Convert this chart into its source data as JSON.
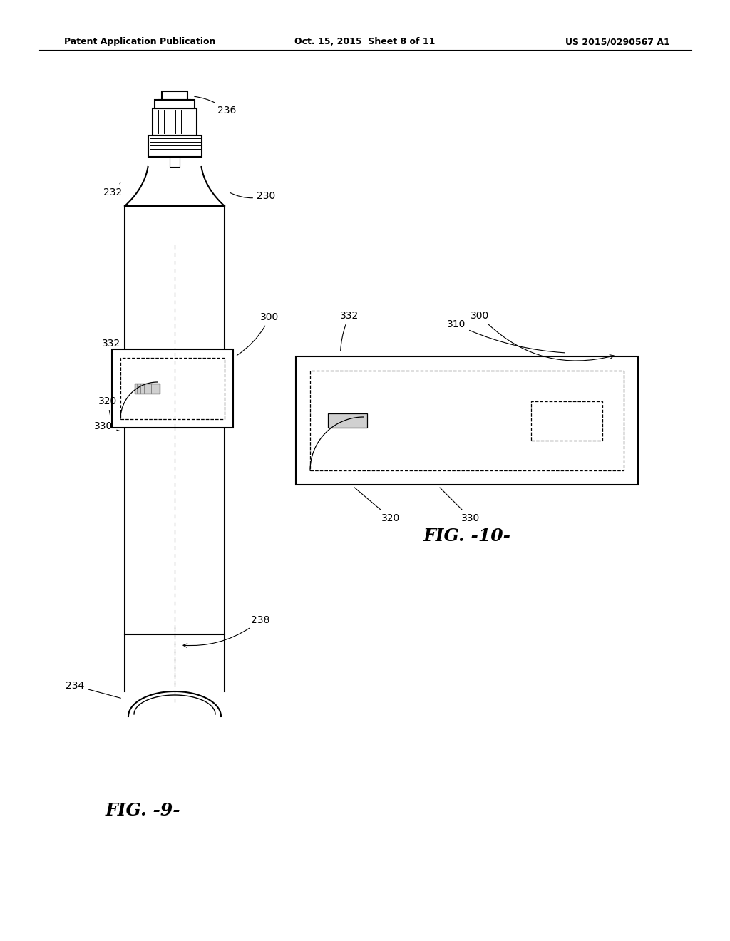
{
  "bg_color": "#ffffff",
  "line_color": "#000000",
  "header_left": "Patent Application Publication",
  "header_center": "Oct. 15, 2015  Sheet 8 of 11",
  "header_right": "US 2015/0290567 A1",
  "fig9_caption": "FIG. -9-",
  "fig10_caption": "FIG. -10-"
}
